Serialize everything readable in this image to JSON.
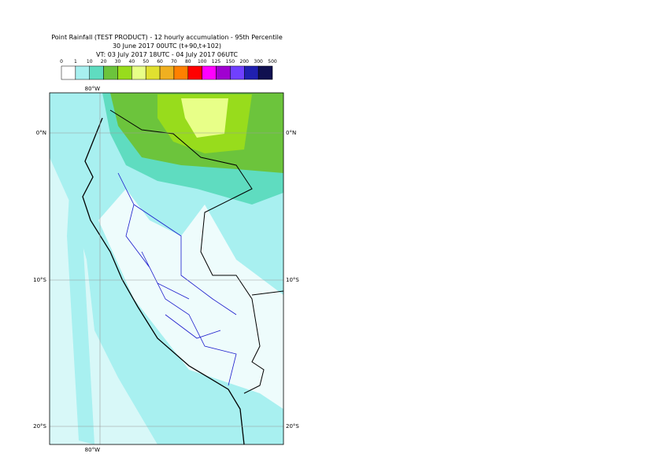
{
  "header": {
    "title": "Point Rainfall (TEST PRODUCT) - 12 hourly accumulation - 95th Percentile",
    "subtitle": "30 June 2017 00UTC (t+90,t+102)",
    "valid_time": "VT: 03 July 2017 18UTC - 04 July 2017 06UTC"
  },
  "legend": {
    "labels": [
      "0",
      "1",
      "10",
      "20",
      "30",
      "40",
      "50",
      "60",
      "70",
      "80",
      "100",
      "125",
      "150",
      "200",
      "300",
      "500"
    ],
    "colors": [
      "#ffffff",
      "#a8f0f0",
      "#5fdcc0",
      "#6cc43c",
      "#98dc1c",
      "#e8ff88",
      "#e0e030",
      "#f0b020",
      "#ff8000",
      "#ff0000",
      "#ff00ff",
      "#a000d0",
      "#7040ff",
      "#2020b0",
      "#101050"
    ]
  },
  "map": {
    "lon_labels_top": [
      "80°W"
    ],
    "lon_labels_bottom": [
      "80°W"
    ],
    "lat_labels_left": [
      "0°N",
      "10°S",
      "20°S"
    ],
    "lat_labels_right": [
      "0°N",
      "10°S",
      "20°S"
    ]
  }
}
